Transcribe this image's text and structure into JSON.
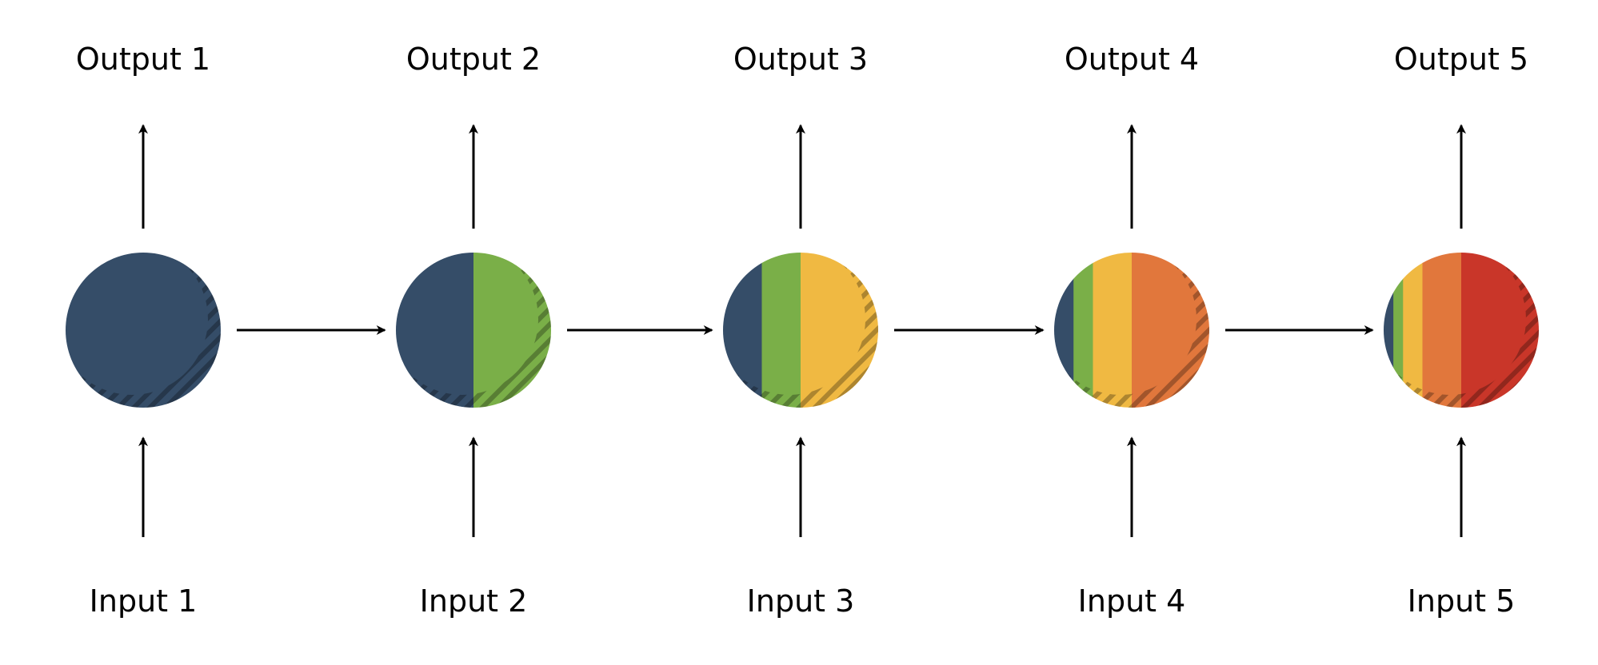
{
  "colors": {
    "stripes": [
      "#354d68",
      "#7aaf48",
      "#f0b942",
      "#e1773c",
      "#c93629"
    ],
    "arrow": "#000000",
    "text": "#000000"
  },
  "nodes": [
    {
      "input": "Input 1",
      "output": "Output 1",
      "bands": [
        1
      ]
    },
    {
      "input": "Input 2",
      "output": "Output 2",
      "bands": [
        1,
        1
      ]
    },
    {
      "input": "Input 3",
      "output": "Output 3",
      "bands": [
        0.5,
        0.5,
        1
      ]
    },
    {
      "input": "Input 4",
      "output": "Output 4",
      "bands": [
        0.25,
        0.25,
        0.5,
        1
      ]
    },
    {
      "input": "Input 5",
      "output": "Output 5",
      "bands": [
        0.125,
        0.125,
        0.25,
        0.5,
        1
      ]
    }
  ]
}
